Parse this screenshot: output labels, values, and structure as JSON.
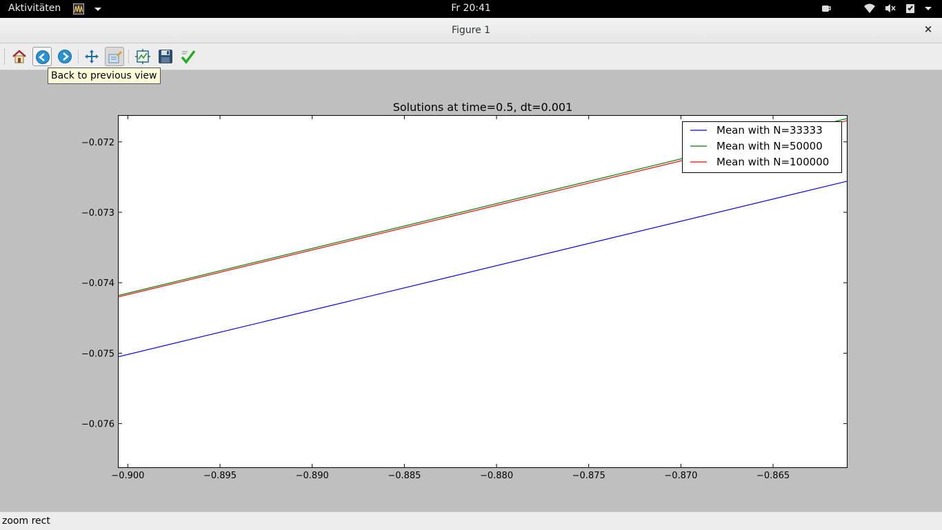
{
  "topbar": {
    "activities": "Aktivitäten",
    "clock": "Fr 20:41",
    "app_icon": "matplotlib-app-icon",
    "tray_icons": [
      "coffee-cup-icon",
      "wifi-icon",
      "volume-muted-icon",
      "clipboard-check-icon",
      "chevron-down-icon"
    ]
  },
  "window": {
    "title": "Figure 1",
    "close_label": "×"
  },
  "toolbar": {
    "buttons": [
      "home-icon",
      "back-icon",
      "forward-icon",
      "pan-icon",
      "zoom-icon",
      "subplots-icon",
      "save-icon",
      "edit-check-icon"
    ],
    "active": "zoom-icon"
  },
  "tooltip": "Back to  previous view",
  "status": "zoom rect",
  "chart_data": {
    "type": "line",
    "title": "Solutions at time=0.5, dt=0.001",
    "xlabel": "",
    "ylabel": "",
    "xlim": [
      -0.9005,
      -0.861
    ],
    "ylim": [
      -0.07662,
      -0.07163
    ],
    "xticks": [
      -0.9,
      -0.895,
      -0.89,
      -0.885,
      -0.88,
      -0.875,
      -0.87,
      -0.865
    ],
    "xtick_labels": [
      "−0.900",
      "−0.895",
      "−0.890",
      "−0.885",
      "−0.880",
      "−0.875",
      "−0.870",
      "−0.865"
    ],
    "yticks": [
      -0.072,
      -0.073,
      -0.074,
      -0.075,
      -0.076
    ],
    "ytick_labels": [
      "−0.072",
      "−0.073",
      "−0.074",
      "−0.075",
      "−0.076"
    ],
    "legend_position": "top-right",
    "series": [
      {
        "name": "Mean with N=33333",
        "color": "#0000ff",
        "x": [
          -0.9005,
          -0.861
        ],
        "y": [
          -0.07505,
          -0.07256
        ]
      },
      {
        "name": "Mean with N=50000",
        "color": "#008000",
        "x": [
          -0.9005,
          -0.861
        ],
        "y": [
          -0.07418,
          -0.07167
        ]
      },
      {
        "name": "Mean with N=100000",
        "color": "#ff0000",
        "x": [
          -0.9005,
          -0.861
        ],
        "y": [
          -0.0742,
          -0.0717
        ]
      }
    ]
  }
}
